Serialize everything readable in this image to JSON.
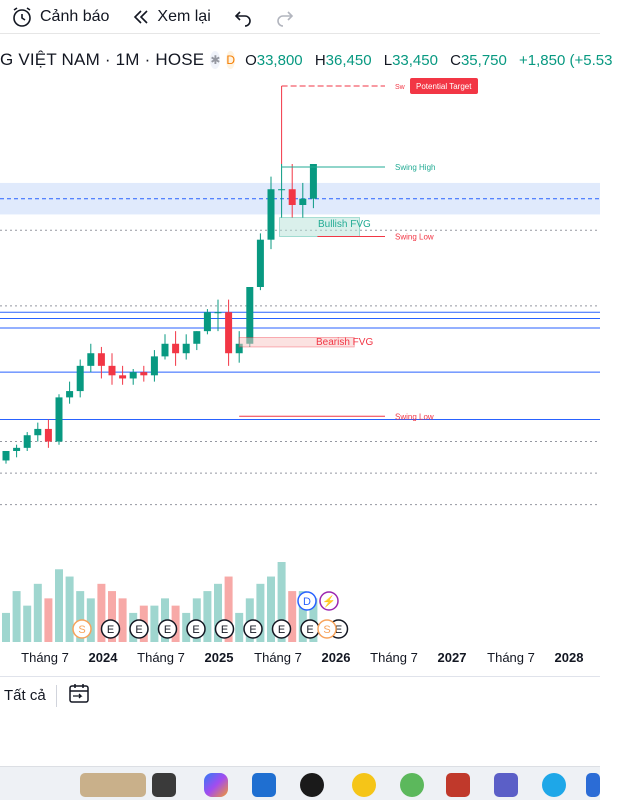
{
  "toolbar": {
    "alert_label": "Cảnh báo",
    "replay_label": "Xem lại"
  },
  "symbol": {
    "title": "G VIỆT NAM · 1M · HOSE",
    "badge_d": "D",
    "ohlc": {
      "o_label": "O",
      "o": "33,800",
      "h_label": "H",
      "h": "36,450",
      "l_label": "L",
      "l": "33,450",
      "c_label": "C",
      "c": "35,750",
      "change": "+1,850 (+5.53"
    }
  },
  "bottom": {
    "all_label": "Tất cả"
  },
  "colors": {
    "up": "#089981",
    "down": "#f23645",
    "volume_up": "#9fd6cf",
    "volume_down": "#f7a9a7",
    "zone": "#dbe6fb",
    "line_blue": "#2962ff",
    "event_orange": "#f7a35c"
  },
  "icons": [
    "alarm-clock-icon",
    "rewind-icon",
    "undo-icon",
    "redo-icon",
    "asterisk-icon",
    "date-range-icon"
  ],
  "chart_data": {
    "type": "candlestick",
    "x": [
      "2023-07",
      "2023-08",
      "2023-09",
      "2023-10",
      "2023-11",
      "2023-12",
      "2024-01",
      "2024-02",
      "2024-03",
      "2024-04",
      "2024-05",
      "2024-06",
      "2024-07",
      "2024-08",
      "2024-09",
      "2024-10",
      "2024-11",
      "2024-12",
      "2025-01",
      "2025-02",
      "2025-03",
      "2025-04",
      "2025-05",
      "2025-06",
      "2025-07",
      "2025-08",
      "2025-09",
      "2025-10",
      "2025-11",
      "2025-12"
    ],
    "open": [
      30,
      33,
      34,
      38,
      40,
      36,
      50,
      52,
      60,
      64,
      60,
      57,
      56,
      58,
      57,
      63,
      67,
      64,
      67,
      71,
      77,
      77,
      64,
      67,
      85,
      100,
      116,
      116,
      111,
      113
    ],
    "high": [
      33,
      35,
      39,
      42,
      43,
      51,
      55,
      62,
      67,
      66,
      64,
      60,
      59,
      60,
      65,
      70,
      71,
      70,
      71,
      78,
      81,
      81,
      71,
      84,
      102,
      120,
      124,
      124,
      118,
      124
    ],
    "low": [
      29,
      31,
      33,
      36,
      34,
      35,
      48,
      50,
      58,
      56,
      54,
      54,
      54,
      55,
      55,
      62,
      60,
      62,
      65,
      70,
      71,
      60,
      61,
      66,
      84,
      97,
      107,
      107,
      107,
      110
    ],
    "close": [
      33,
      34,
      38,
      40,
      36,
      50,
      52,
      60,
      64,
      60,
      57,
      56,
      58,
      57,
      63,
      67,
      64,
      67,
      71,
      77,
      77,
      64,
      67,
      85,
      100,
      116,
      116,
      111,
      113,
      124
    ],
    "volume": [
      4,
      7,
      5,
      8,
      6,
      10,
      9,
      7,
      6,
      8,
      7,
      6,
      4,
      5,
      5,
      6,
      5,
      4,
      6,
      7,
      8,
      9,
      4,
      6,
      8,
      9,
      11,
      7,
      7,
      6
    ],
    "ylim": [
      20,
      150
    ],
    "annotations": [
      {
        "label": "Potential Target",
        "kind": "target"
      },
      {
        "label": "Sw",
        "kind": "text"
      },
      {
        "label": "Swing High",
        "kind": "text"
      },
      {
        "label": "Bullish FVG",
        "kind": "zone"
      },
      {
        "label": "Swing Low",
        "kind": "text"
      },
      {
        "label": "Bearish FVG",
        "kind": "zone"
      },
      {
        "label": "Swing Low",
        "kind": "text"
      }
    ],
    "events": [
      "S",
      "E",
      "E",
      "E",
      "E",
      "E",
      "E",
      "E",
      "E",
      "E",
      "S",
      "D"
    ],
    "x_tick_labels": [
      "Tháng 7",
      "2024",
      "Tháng 7",
      "2025",
      "Tháng 7",
      "2026",
      "Tháng 7",
      "2027",
      "Tháng 7",
      "2028"
    ]
  }
}
